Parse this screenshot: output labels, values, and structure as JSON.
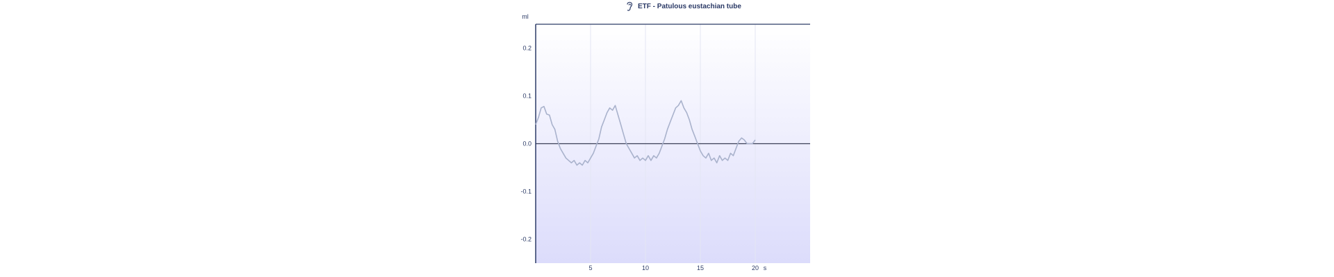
{
  "chart_data": {
    "type": "line",
    "title": "ETF - Patulous eustachian tube",
    "icon": "ear-icon",
    "ylabel": "ml",
    "xlabel": "s",
    "xlim": [
      0,
      25
    ],
    "ylim": [
      -0.25,
      0.25
    ],
    "x_ticks": [
      5,
      10,
      15,
      20
    ],
    "x_tick_labels": [
      "5",
      "10",
      "15",
      "20"
    ],
    "y_ticks": [
      0.2,
      0.1,
      0.0,
      -0.1,
      -0.2
    ],
    "y_tick_labels": [
      "0.2",
      "0.1",
      "0.0",
      "-0.1",
      "-0.2"
    ],
    "grid": true,
    "colors": {
      "line": "#a9b2cc",
      "axis": "#2b3a66",
      "zero_line": "#3a3f55",
      "grid": "#e4e6f3",
      "bg_top": "#ffffff",
      "bg_bottom": "#dcdcfb"
    },
    "series": [
      {
        "x": [
          0.0,
          0.25,
          0.5,
          0.75,
          1.0,
          1.25,
          1.5,
          1.75,
          2.0,
          2.25,
          2.5,
          2.75,
          3.0,
          3.25,
          3.5,
          3.75,
          4.0,
          4.25,
          4.5,
          4.75,
          5.0,
          5.25,
          5.5,
          5.75,
          6.0,
          6.25,
          6.5,
          6.75,
          7.0,
          7.25,
          7.5,
          7.75,
          8.0,
          8.25,
          8.5,
          8.75,
          9.0,
          9.25,
          9.5,
          9.75,
          10.0,
          10.25,
          10.5,
          10.75,
          11.0,
          11.25,
          11.5,
          11.75,
          12.0,
          12.25,
          12.5,
          12.75,
          13.0,
          13.25,
          13.5,
          13.75,
          14.0,
          14.25,
          14.5,
          14.75,
          15.0,
          15.25,
          15.5,
          15.75,
          16.0,
          16.25,
          16.5,
          16.75,
          17.0,
          17.25,
          17.5,
          17.75,
          18.0,
          18.25,
          18.5,
          18.75,
          19.0,
          19.25,
          19.5,
          19.75,
          20.0
        ],
        "y": [
          0.04,
          0.055,
          0.075,
          0.078,
          0.062,
          0.06,
          0.04,
          0.03,
          0.005,
          -0.01,
          -0.02,
          -0.03,
          -0.035,
          -0.04,
          -0.035,
          -0.045,
          -0.04,
          -0.045,
          -0.035,
          -0.04,
          -0.03,
          -0.02,
          -0.005,
          0.01,
          0.035,
          0.05,
          0.065,
          0.075,
          0.07,
          0.08,
          0.06,
          0.04,
          0.02,
          0.0,
          -0.01,
          -0.02,
          -0.03,
          -0.025,
          -0.035,
          -0.03,
          -0.035,
          -0.025,
          -0.035,
          -0.025,
          -0.03,
          -0.02,
          -0.005,
          0.01,
          0.03,
          0.045,
          0.06,
          0.075,
          0.08,
          0.09,
          0.075,
          0.065,
          0.05,
          0.03,
          0.015,
          0.0,
          -0.015,
          -0.025,
          -0.03,
          -0.02,
          -0.035,
          -0.03,
          -0.04,
          -0.025,
          -0.035,
          -0.03,
          -0.035,
          -0.02,
          -0.025,
          -0.01,
          0.005,
          0.012,
          0.008,
          0.0,
          0.0,
          0.0,
          0.008
        ]
      }
    ]
  }
}
